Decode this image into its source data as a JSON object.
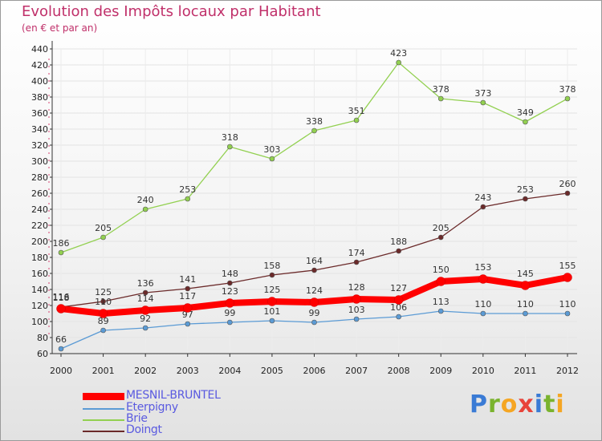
{
  "header": {
    "title": "Evolution des Impôts locaux par Habitant",
    "subtitle": "(en € et par an)"
  },
  "chart_data": {
    "type": "line",
    "title": "Evolution des Impôts locaux par Habitant",
    "subtitle": "(en € et par an)",
    "x": [
      "2000",
      "2001",
      "2002",
      "2003",
      "2004",
      "2005",
      "2006",
      "2007",
      "2008",
      "2009",
      "2010",
      "2011",
      "2012"
    ],
    "yticks": [
      60,
      80,
      100,
      120,
      140,
      160,
      180,
      200,
      220,
      240,
      260,
      280,
      300,
      320,
      340,
      360,
      380,
      400,
      420,
      440
    ],
    "ylim": [
      60,
      440
    ],
    "grid": true,
    "legend_position": "bottom-left",
    "series": [
      {
        "name": "MESNIL-BRUNTEL",
        "color": "#ff0000",
        "values": [
          116,
          110,
          114,
          117,
          123,
          125,
          124,
          128,
          127,
          150,
          153,
          145,
          155
        ]
      },
      {
        "name": "Eterpigny",
        "color": "#5b9bd5",
        "values": [
          66,
          89,
          92,
          97,
          99,
          101,
          99,
          103,
          106,
          113,
          110,
          110,
          110
        ]
      },
      {
        "name": "Brie",
        "color": "#92d050",
        "values": [
          186,
          205,
          240,
          253,
          318,
          303,
          338,
          351,
          423,
          378,
          373,
          349,
          378
        ]
      },
      {
        "name": "Doingt",
        "color": "#6b2a2a",
        "values": [
          118,
          125,
          136,
          141,
          148,
          158,
          164,
          174,
          188,
          205,
          243,
          253,
          260
        ]
      }
    ]
  },
  "logo": {
    "letters": [
      "P",
      "r",
      "o",
      "x",
      "i",
      "t",
      "i"
    ],
    "colors": [
      "#3a7bd5",
      "#7ab32e",
      "#f5a623",
      "#e8433a",
      "#3a7bd5",
      "#7ab32e",
      "#f5a623"
    ]
  }
}
